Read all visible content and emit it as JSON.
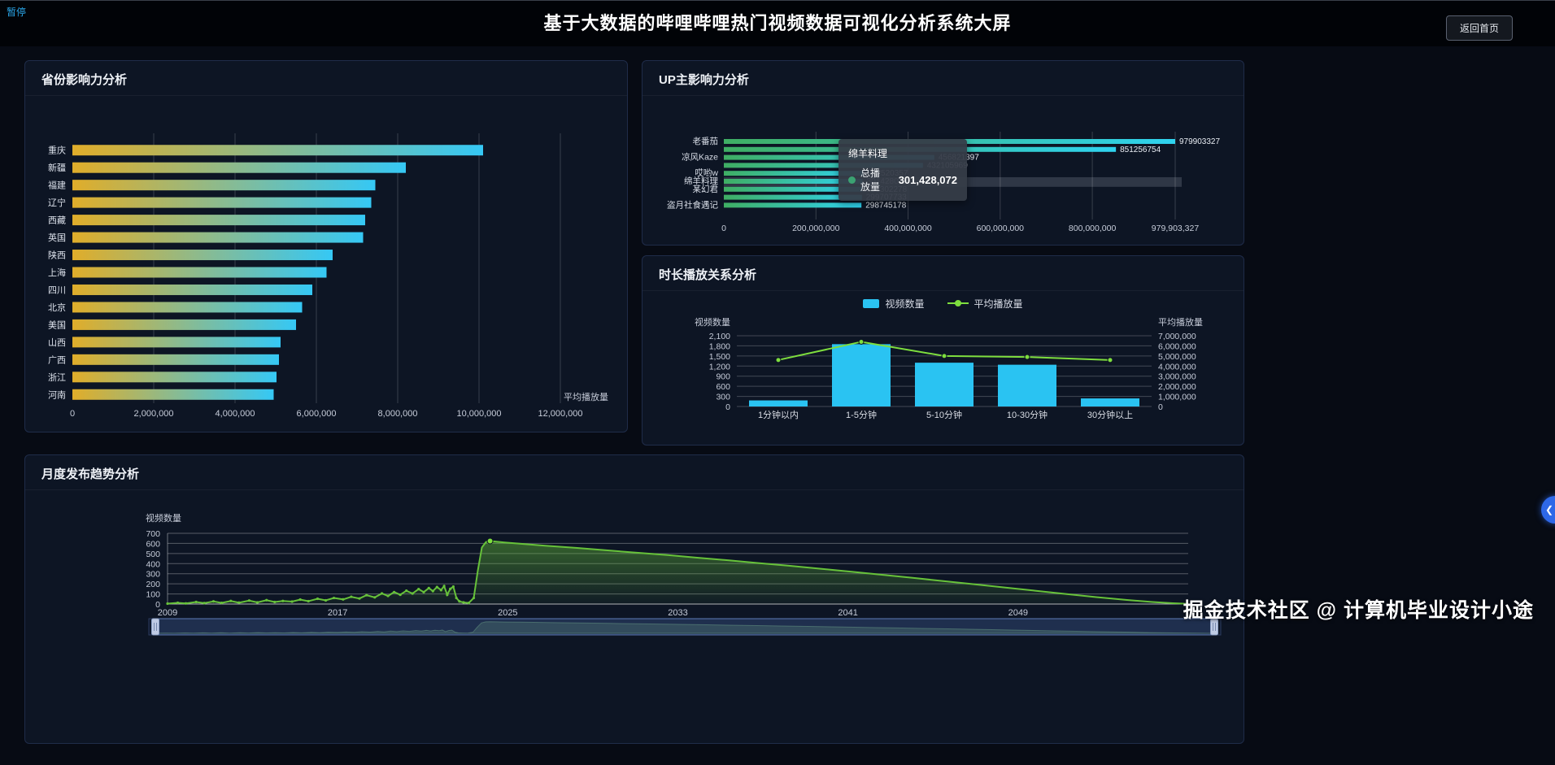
{
  "page": {
    "pause_link": "暂停",
    "title": "基于大数据的哔哩哔哩热门视频数据可视化分析系统大屏",
    "back_button": "返回首页",
    "watermark": "掘金技术社区 @ 计算机毕业设计小途",
    "drawer_icon": "❮"
  },
  "colors": {
    "page_bg": "#070b14",
    "panel_bg": "#0d1524",
    "accent_cyan": "#2ac3f2",
    "accent_green": "#7ede3e",
    "monthly_line_green": "#67c23a",
    "tooltip_dot_green": "#3ba272"
  },
  "chart_data": [
    {
      "id": "province",
      "type": "bar",
      "orientation": "horizontal",
      "title": "省份影响力分析",
      "xlabel": "平均播放量",
      "categories": [
        "重庆",
        "新疆",
        "福建",
        "辽宁",
        "西藏",
        "英国",
        "陕西",
        "上海",
        "四川",
        "北京",
        "美国",
        "山西",
        "广西",
        "浙江",
        "河南"
      ],
      "values": [
        10100000,
        8200000,
        7450000,
        7350000,
        7200000,
        7150000,
        6400000,
        6250000,
        5900000,
        5650000,
        5500000,
        5120000,
        5080000,
        5020000,
        4950000
      ],
      "x_ticks": [
        0,
        2000000,
        4000000,
        6000000,
        8000000,
        10000000,
        12000000
      ],
      "xlim": [
        0,
        12000000
      ],
      "bar_gradient": [
        "#e0ad2a",
        "#35c8f5"
      ],
      "grid": true
    },
    {
      "id": "up",
      "type": "bar",
      "orientation": "horizontal",
      "title": "UP主影响力分析",
      "bars": [
        {
          "name": "老番茄",
          "value": 979903327
        },
        {
          "name": "",
          "value": 851256754
        },
        {
          "name": "凉风Kaze",
          "value": 456821397
        },
        {
          "name": "",
          "value": 432105969
        },
        {
          "name": "哎哟w",
          "value": 302520357
        },
        {
          "name": "绵羊料理",
          "value": 301428072,
          "highlighted": true
        },
        {
          "name": "某幻君",
          "value": 300302278
        },
        {
          "name": "",
          "value": 299707733
        },
        {
          "name": "盗月社食遇记",
          "value": 298745178
        }
      ],
      "x_ticks": [
        0,
        200000000,
        400000000,
        600000000,
        800000000,
        979903327
      ],
      "xlim": [
        0,
        979903327
      ],
      "bar_gradient": [
        "#3fae63",
        "#2fd3f0"
      ],
      "tooltip": {
        "name": "绵羊料理",
        "series": "总播放量",
        "value": "301,428,072"
      },
      "grid": true
    },
    {
      "id": "duration",
      "type": "bar+line",
      "title": "时长播放关系分析",
      "categories": [
        "1分钟以内",
        "1-5分钟",
        "5-10分钟",
        "10-30分钟",
        "30分钟以上"
      ],
      "series": [
        {
          "name": "视频数量",
          "type": "bar",
          "axis": "left",
          "color": "#2ac3f2",
          "values": [
            180,
            1850,
            1300,
            1240,
            240
          ]
        },
        {
          "name": "平均播放量",
          "type": "line",
          "axis": "right",
          "color": "#7ede3e",
          "values": [
            4600000,
            6400000,
            5000000,
            4900000,
            4600000
          ]
        }
      ],
      "left_axis": {
        "name": "视频数量",
        "max": 2100,
        "step": 300
      },
      "right_axis": {
        "name": "平均播放量",
        "max": 7000000,
        "step": 1000000
      },
      "legend_position": "top-center",
      "grid": true
    },
    {
      "id": "monthly",
      "type": "area",
      "title": "月度发布趋势分析",
      "ylabel": "视频数量",
      "ylim": [
        0,
        700
      ],
      "ystep": 100,
      "x_ticks": [
        "2009",
        "2017",
        "2025",
        "2033",
        "2041",
        "2049"
      ],
      "line_color": "#67c23a",
      "has_datazoom_slider": true,
      "points": [
        [
          0.0,
          4
        ],
        [
          0.01,
          12
        ],
        [
          0.018,
          6
        ],
        [
          0.028,
          20
        ],
        [
          0.036,
          9
        ],
        [
          0.045,
          26
        ],
        [
          0.053,
          11
        ],
        [
          0.062,
          30
        ],
        [
          0.07,
          14
        ],
        [
          0.08,
          34
        ],
        [
          0.088,
          16
        ],
        [
          0.097,
          38
        ],
        [
          0.105,
          20
        ],
        [
          0.113,
          30
        ],
        [
          0.122,
          24
        ],
        [
          0.13,
          44
        ],
        [
          0.138,
          28
        ],
        [
          0.147,
          52
        ],
        [
          0.155,
          36
        ],
        [
          0.163,
          60
        ],
        [
          0.172,
          46
        ],
        [
          0.18,
          72
        ],
        [
          0.188,
          55
        ],
        [
          0.195,
          88
        ],
        [
          0.203,
          66
        ],
        [
          0.21,
          105
        ],
        [
          0.216,
          80
        ],
        [
          0.222,
          118
        ],
        [
          0.228,
          92
        ],
        [
          0.234,
          132
        ],
        [
          0.24,
          104
        ],
        [
          0.246,
          148
        ],
        [
          0.251,
          118
        ],
        [
          0.256,
          158
        ],
        [
          0.26,
          128
        ],
        [
          0.264,
          168
        ],
        [
          0.268,
          138
        ],
        [
          0.271,
          178
        ],
        [
          0.274,
          92
        ],
        [
          0.277,
          150
        ],
        [
          0.28,
          172
        ],
        [
          0.283,
          60
        ],
        [
          0.286,
          26
        ],
        [
          0.29,
          16
        ],
        [
          0.295,
          10
        ],
        [
          0.3,
          60
        ],
        [
          0.304,
          330
        ],
        [
          0.308,
          560
        ],
        [
          0.312,
          615
        ],
        [
          0.316,
          624
        ],
        [
          0.322,
          618
        ],
        [
          0.33,
          610
        ],
        [
          0.345,
          598
        ],
        [
          0.37,
          578
        ],
        [
          0.4,
          556
        ],
        [
          0.43,
          532
        ],
        [
          0.46,
          508
        ],
        [
          0.49,
          484
        ],
        [
          0.52,
          458
        ],
        [
          0.55,
          432
        ],
        [
          0.58,
          405
        ],
        [
          0.61,
          378
        ],
        [
          0.64,
          349
        ],
        [
          0.67,
          320
        ],
        [
          0.7,
          290
        ],
        [
          0.73,
          259
        ],
        [
          0.76,
          228
        ],
        [
          0.79,
          196
        ],
        [
          0.82,
          164
        ],
        [
          0.85,
          132
        ],
        [
          0.88,
          100
        ],
        [
          0.91,
          68
        ],
        [
          0.94,
          40
        ],
        [
          0.965,
          20
        ],
        [
          0.985,
          8
        ],
        [
          1.0,
          2
        ]
      ]
    }
  ]
}
